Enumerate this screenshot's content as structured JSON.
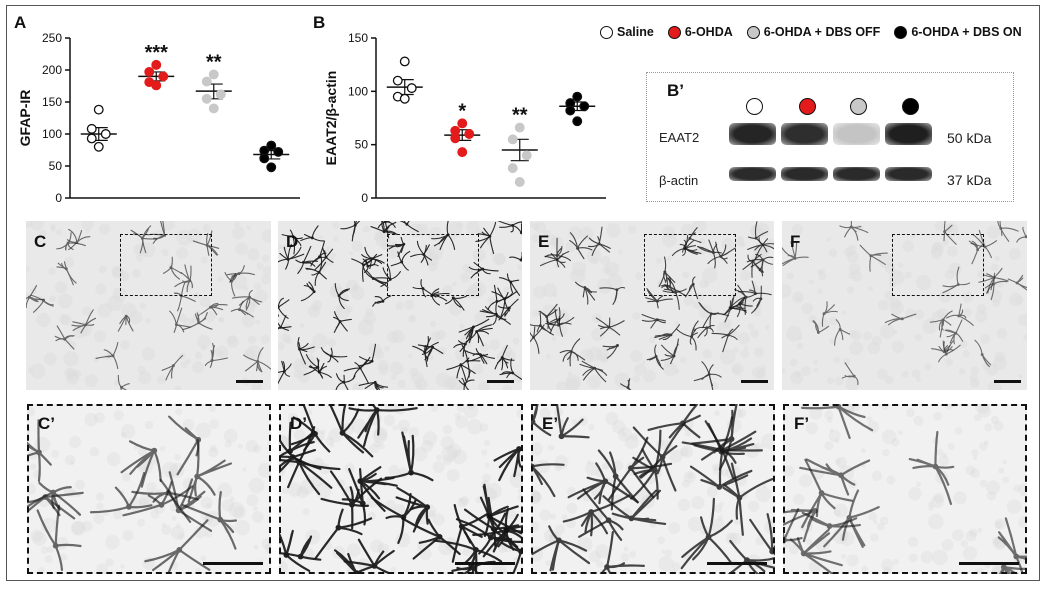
{
  "panels": {
    "A": "A",
    "B": "B",
    "B_prime": "B’"
  },
  "legend": [
    {
      "label": "Saline",
      "color": "#ffffff"
    },
    {
      "label": "6-OHDA",
      "color": "#e31b1b"
    },
    {
      "label": "6-OHDA + DBS OFF",
      "color": "#c8c8c8"
    },
    {
      "label": "6-OHDA + DBS ON",
      "color": "#000000"
    }
  ],
  "chart_data": [
    {
      "panel": "A",
      "type": "scatter",
      "ylabel": "GFAP-IR",
      "xlabel": "",
      "ylim": [
        0,
        250
      ],
      "yticks": [
        0,
        50,
        100,
        150,
        200,
        250
      ],
      "groups": [
        {
          "color": "#ffffff",
          "points": [
            138,
            108,
            100,
            93,
            80
          ],
          "mean": 100,
          "sem_low": 90,
          "sem_high": 110,
          "significance": ""
        },
        {
          "color": "#e31b1b",
          "points": [
            208,
            197,
            190,
            181,
            176
          ],
          "mean": 190,
          "sem_low": 183,
          "sem_high": 197,
          "significance": "***"
        },
        {
          "color": "#c8c8c8",
          "points": [
            193,
            182,
            162,
            155,
            140
          ],
          "mean": 167,
          "sem_low": 155,
          "sem_high": 178,
          "significance": "**"
        },
        {
          "color": "#000000",
          "points": [
            82,
            74,
            72,
            62,
            48
          ],
          "mean": 68,
          "sem_low": 61,
          "sem_high": 74,
          "significance": ""
        }
      ]
    },
    {
      "panel": "B",
      "type": "scatter",
      "ylabel": "EAAT2/β-actin",
      "xlabel": "",
      "ylim": [
        0,
        150
      ],
      "yticks": [
        0,
        50,
        100,
        150
      ],
      "groups": [
        {
          "color": "#ffffff",
          "points": [
            128,
            110,
            103,
            95,
            93
          ],
          "mean": 104,
          "sem_low": 97,
          "sem_high": 111,
          "significance": ""
        },
        {
          "color": "#e31b1b",
          "points": [
            70,
            63,
            60,
            56,
            43
          ],
          "mean": 59,
          "sem_low": 54,
          "sem_high": 64,
          "significance": "*"
        },
        {
          "color": "#c8c8c8",
          "points": [
            66,
            55,
            40,
            28,
            15
          ],
          "mean": 45,
          "sem_low": 35,
          "sem_high": 55,
          "significance": "**"
        },
        {
          "color": "#000000",
          "points": [
            95,
            89,
            86,
            82,
            72
          ],
          "mean": 86,
          "sem_low": 82,
          "sem_high": 90,
          "significance": ""
        }
      ]
    }
  ],
  "blot": {
    "rows": [
      {
        "label": "EAAT2",
        "size": "50 kDa",
        "intensities": [
          0.92,
          0.88,
          0.18,
          0.95
        ]
      },
      {
        "label": "β-actin",
        "size": "37 kDa",
        "intensities": [
          0.9,
          0.9,
          0.9,
          0.9
        ]
      }
    ],
    "lane_colors": [
      "#ffffff",
      "#e31b1b",
      "#c8c8c8",
      "#000000"
    ]
  },
  "micrographs": [
    {
      "label": "C",
      "inset_label": "C’",
      "density": 0.25
    },
    {
      "label": "D",
      "inset_label": "D’",
      "density": 0.85
    },
    {
      "label": "E",
      "inset_label": "E’",
      "density": 0.6
    },
    {
      "label": "F",
      "inset_label": "F’",
      "density": 0.2
    }
  ]
}
